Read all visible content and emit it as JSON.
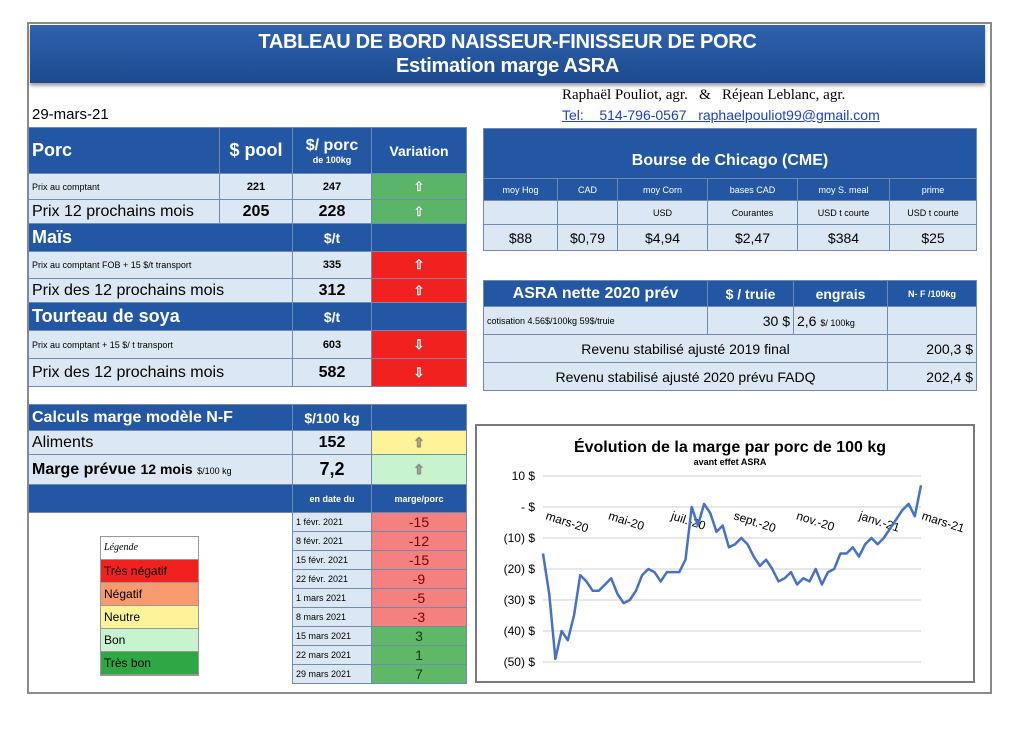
{
  "header": {
    "title1": "TABLEAU DE BORD NAISSEUR-FINISSEUR DE PORC",
    "title2": "Estimation marge ASRA"
  },
  "meta": {
    "date": "29-mars-21",
    "authors": "Raphaël Pouliot, agr.   &   Réjean Leblanc, agr.",
    "contact": "Tel:    514-796-0567   raphaelpouliot99@gmail.com"
  },
  "porc": {
    "title": "Porc",
    "col_pool": "$ pool",
    "col_porc": "$/ porc",
    "col_porc_sub": "de 100kg",
    "col_var": "Variation",
    "rows": [
      {
        "label": "Prix au comptant",
        "pool": "221",
        "porc": "247"
      },
      {
        "label": "Prix 12 prochains mois",
        "pool": "205",
        "porc": "228"
      }
    ]
  },
  "mais": {
    "title": "Maïs",
    "unit": "$/t",
    "rows": [
      {
        "label": "Prix au comptant  FOB + 15 $/t transport",
        "value": "335"
      },
      {
        "label": "Prix des 12 prochains mois",
        "value": "312"
      }
    ]
  },
  "soya": {
    "title": "Tourteau de soya",
    "unit": "$/t",
    "rows": [
      {
        "label": "Prix au comptant  + 15 $/ t  transport",
        "value": "603"
      },
      {
        "label": "Prix des 12 prochains mois",
        "value": "582"
      }
    ]
  },
  "calc": {
    "title": "Calculs marge  modèle N-F",
    "unit": "$/100 kg",
    "aliments_label": "Aliments",
    "aliments_value": "152",
    "marge_label": "Marge prévue",
    "marge_sub": "12 mois",
    "marge_unit": "$/100 kg",
    "marge_value": "7,2",
    "col_date": "en date du",
    "col_marge": "marge/porc",
    "history": [
      {
        "date": "1 févr. 2021",
        "value": "-15"
      },
      {
        "date": "8 févr. 2021",
        "value": "-12"
      },
      {
        "date": "15 févr. 2021",
        "value": "-15"
      },
      {
        "date": "22 févr. 2021",
        "value": "-9"
      },
      {
        "date": "1 mars 2021",
        "value": "-5"
      },
      {
        "date": "8 mars 2021",
        "value": "-3"
      },
      {
        "date": "15 mars 2021",
        "value": "3"
      },
      {
        "date": "22 mars 2021",
        "value": "1"
      },
      {
        "date": "29 mars 2021",
        "value": "7"
      }
    ]
  },
  "legend": {
    "title": "Légende",
    "items": [
      "Très négatif",
      "Négatif",
      "Neutre",
      "Bon",
      "Très bon"
    ],
    "colors": [
      "#f0211f",
      "#f79a6e",
      "#fff39a",
      "#c8f3cf",
      "#2ea844"
    ]
  },
  "cme": {
    "title": "Bourse de Chicago (CME)",
    "cols": [
      "moy Hog",
      "CAD",
      "moy Corn",
      "bases CAD",
      "moy S. meal",
      "prime"
    ],
    "subs": [
      "",
      "",
      "USD",
      "Courantes",
      "USD t courte",
      "USD t courte"
    ],
    "values": [
      "$88",
      "$0,79",
      "$4,94",
      "$2,47",
      "$384",
      "$25"
    ]
  },
  "asra": {
    "title": "ASRA nette 2020 prév",
    "col_truie": "$ / truie",
    "col_engrais": "engrais",
    "col_nf": "N- F /100kg",
    "cot_label": "cotisation 4.56$/100kg  59$/truie",
    "cot_truie": "30  $",
    "cot_engrais": "2,6",
    "cot_engrais_unit": "$/ 100kg",
    "rows": [
      {
        "label": "Revenu stabilisé ajusté 2019 final",
        "value": "200,3 $"
      },
      {
        "label": "Revenu stabilisé ajusté 2020 prévu FADQ",
        "value": "202,4 $"
      }
    ]
  },
  "chart_data": {
    "type": "line",
    "title": "Évolution de la marge par porc de 100 kg",
    "subtitle": "avant effet ASRA",
    "ylim": [
      -50,
      10
    ],
    "yticks": [
      "10 $",
      "- $",
      "(10) $",
      "(20) $",
      "(30) $",
      "(40) $",
      "(50) $"
    ],
    "xticks": [
      "mars-20",
      "mai-20",
      "juil.-20",
      "sept.-20",
      "nov.-20",
      "janv.-21",
      "mars-21"
    ],
    "series": [
      {
        "name": "marge",
        "values": [
          -15,
          -28,
          -49,
          -40,
          -43,
          -35,
          -22,
          -24,
          -27,
          -27,
          -25,
          -23,
          -28,
          -31,
          -30,
          -27,
          -22,
          -20,
          -21,
          -24,
          -21,
          -21,
          -21,
          -17,
          0,
          -6,
          1,
          -2,
          -8,
          -6,
          -13,
          -12,
          -10,
          -12,
          -16,
          -19,
          -17,
          -20,
          -24,
          -23,
          -21,
          -25,
          -23,
          -24,
          -20,
          -25,
          -21,
          -20,
          -15,
          -15,
          -13,
          -16,
          -12,
          -10,
          -12,
          -10,
          -7,
          -4,
          -1,
          1,
          -3,
          7
        ]
      }
    ]
  }
}
